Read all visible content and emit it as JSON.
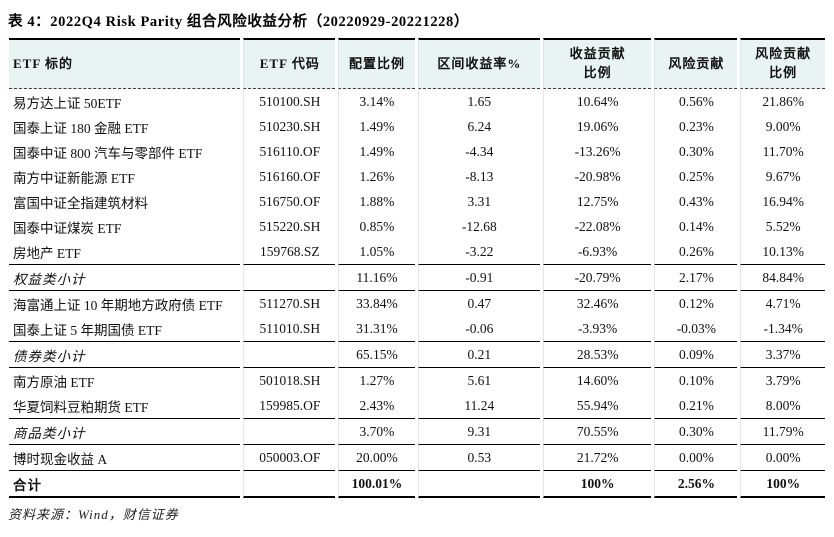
{
  "table": {
    "title": "表 4：2022Q4 Risk Parity 组合风险收益分析（20220929-20221228）",
    "columns": [
      {
        "label": "ETF 标的"
      },
      {
        "label": "ETF 代码"
      },
      {
        "label": "配置比例"
      },
      {
        "label": "区间收益率%"
      },
      {
        "label": "收益贡献\n比例"
      },
      {
        "label": "风险贡献"
      },
      {
        "label": "风险贡献\n比例"
      }
    ],
    "rows": [
      {
        "style": "data",
        "name": "易方达上证 50ETF",
        "code": "510100.SH",
        "weight": "3.14%",
        "ret": "1.65",
        "ret_contrib": "10.64%",
        "risk": "0.56%",
        "risk_pct": "21.86%"
      },
      {
        "style": "data",
        "name": "国泰上证 180 金融 ETF",
        "code": "510230.SH",
        "weight": "1.49%",
        "ret": "6.24",
        "ret_contrib": "19.06%",
        "risk": "0.23%",
        "risk_pct": "9.00%"
      },
      {
        "style": "data",
        "name": "国泰中证 800 汽车与零部件 ETF",
        "code": "516110.OF",
        "weight": "1.49%",
        "ret": "-4.34",
        "ret_contrib": "-13.26%",
        "risk": "0.30%",
        "risk_pct": "11.70%"
      },
      {
        "style": "data",
        "name": "南方中证新能源 ETF",
        "code": "516160.OF",
        "weight": "1.26%",
        "ret": "-8.13",
        "ret_contrib": "-20.98%",
        "risk": "0.25%",
        "risk_pct": "9.67%"
      },
      {
        "style": "data",
        "name": "富国中证全指建筑材料",
        "code": "516750.OF",
        "weight": "1.88%",
        "ret": "3.31",
        "ret_contrib": "12.75%",
        "risk": "0.43%",
        "risk_pct": "16.94%"
      },
      {
        "style": "data",
        "name": "国泰中证煤炭 ETF",
        "code": "515220.SH",
        "weight": "0.85%",
        "ret": "-12.68",
        "ret_contrib": "-22.08%",
        "risk": "0.14%",
        "risk_pct": "5.52%"
      },
      {
        "style": "data",
        "name": "房地产 ETF",
        "code": "159768.SZ",
        "weight": "1.05%",
        "ret": "-3.22",
        "ret_contrib": "-6.93%",
        "risk": "0.26%",
        "risk_pct": "10.13%"
      },
      {
        "style": "subtotal",
        "name": "权益类小计",
        "code": "",
        "weight": "11.16%",
        "ret": "-0.91",
        "ret_contrib": "-20.79%",
        "risk": "2.17%",
        "risk_pct": "84.84%"
      },
      {
        "style": "data",
        "name": "海富通上证 10 年期地方政府债 ETF",
        "code": "511270.SH",
        "weight": "33.84%",
        "ret": "0.47",
        "ret_contrib": "32.46%",
        "risk": "0.12%",
        "risk_pct": "4.71%"
      },
      {
        "style": "data",
        "name": "国泰上证 5 年期国债 ETF",
        "code": "511010.SH",
        "weight": "31.31%",
        "ret": "-0.06",
        "ret_contrib": "-3.93%",
        "risk": "-0.03%",
        "risk_pct": "-1.34%"
      },
      {
        "style": "subtotal",
        "name": "债券类小计",
        "code": "",
        "weight": "65.15%",
        "ret": "0.21",
        "ret_contrib": "28.53%",
        "risk": "0.09%",
        "risk_pct": "3.37%"
      },
      {
        "style": "data",
        "name": "南方原油 ETF",
        "code": "501018.SH",
        "weight": "1.27%",
        "ret": "5.61",
        "ret_contrib": "14.60%",
        "risk": "0.10%",
        "risk_pct": "3.79%"
      },
      {
        "style": "data",
        "name": "华夏饲料豆粕期货 ETF",
        "code": "159985.OF",
        "weight": "2.43%",
        "ret": "11.24",
        "ret_contrib": "55.94%",
        "risk": "0.21%",
        "risk_pct": "8.00%"
      },
      {
        "style": "subtotal",
        "name": "商品类小计",
        "code": "",
        "weight": "3.70%",
        "ret": "9.31",
        "ret_contrib": "70.55%",
        "risk": "0.30%",
        "risk_pct": "11.79%"
      },
      {
        "style": "data",
        "name": "博时现金收益 A",
        "code": "050003.OF",
        "weight": "20.00%",
        "ret": "0.53",
        "ret_contrib": "21.72%",
        "risk": "0.00%",
        "risk_pct": "0.00%"
      },
      {
        "style": "total",
        "name": "合计",
        "code": "",
        "weight": "100.01%",
        "ret": "",
        "ret_contrib": "100%",
        "risk": "2.56%",
        "risk_pct": "100%"
      }
    ]
  },
  "source": "资料来源：Wind，财信证券",
  "colors": {
    "header_bg": "#e9f4f2",
    "rule": "#000000",
    "text": "#111111"
  }
}
